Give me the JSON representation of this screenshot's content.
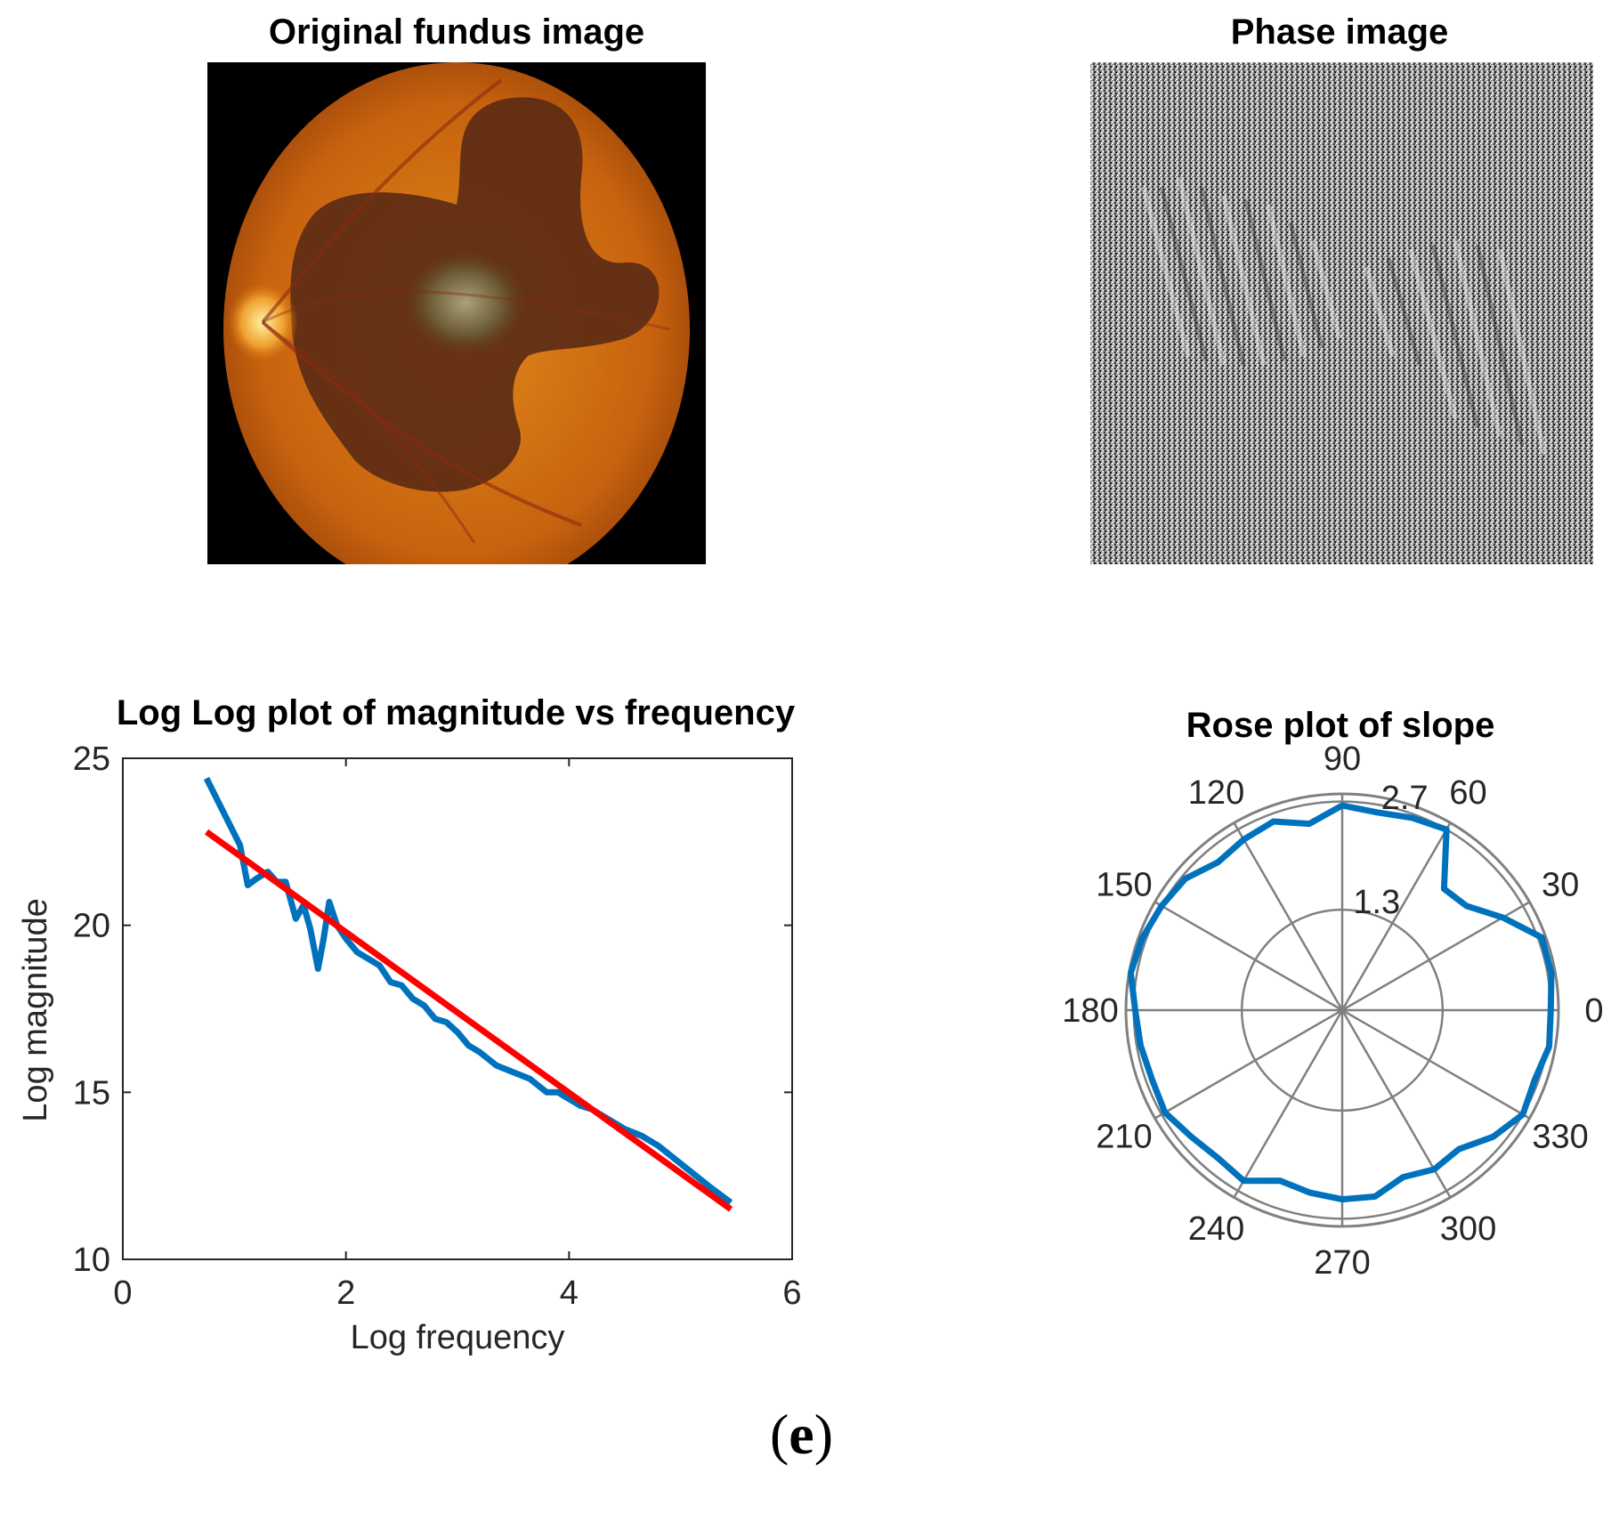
{
  "figure": {
    "caption_letter": "e",
    "caption_open": "(",
    "caption_close": ")"
  },
  "fundus": {
    "title": "Original fundus image"
  },
  "phase": {
    "title": "Phase image"
  },
  "colors": {
    "series": "#0072BD",
    "fit": "#FF0000",
    "axis": "#262626",
    "grid": "#808080"
  },
  "chart_data": [
    {
      "type": "line",
      "title": "Log Log plot of magnitude vs frequency",
      "xlabel": "Log frequency",
      "ylabel": "Log magnitude",
      "xlim": [
        0,
        6
      ],
      "ylim": [
        10,
        25
      ],
      "xticks": [
        0,
        2,
        4,
        6
      ],
      "yticks": [
        10,
        15,
        20,
        25
      ],
      "series": [
        {
          "name": "magnitude",
          "x": [
            0.75,
            0.9,
            1.05,
            1.12,
            1.2,
            1.3,
            1.38,
            1.46,
            1.55,
            1.62,
            1.68,
            1.75,
            1.8,
            1.85,
            1.92,
            2.0,
            2.1,
            2.2,
            2.3,
            2.4,
            2.5,
            2.6,
            2.7,
            2.8,
            2.9,
            3.0,
            3.1,
            3.2,
            3.35,
            3.5,
            3.65,
            3.8,
            3.9,
            4.0,
            4.1,
            4.2,
            4.35,
            4.5,
            4.65,
            4.8,
            4.95,
            5.1,
            5.25,
            5.45
          ],
          "y": [
            24.4,
            23.4,
            22.4,
            21.2,
            21.4,
            21.6,
            21.3,
            21.3,
            20.2,
            20.6,
            19.9,
            18.7,
            19.6,
            20.7,
            20.0,
            19.6,
            19.2,
            19.0,
            18.8,
            18.3,
            18.2,
            17.8,
            17.6,
            17.2,
            17.1,
            16.8,
            16.4,
            16.2,
            15.8,
            15.6,
            15.4,
            15.0,
            15.0,
            14.8,
            14.6,
            14.5,
            14.2,
            13.9,
            13.7,
            13.4,
            13.0,
            12.6,
            12.2,
            11.7
          ]
        },
        {
          "name": "linear fit",
          "x": [
            0.75,
            5.45
          ],
          "y": [
            22.8,
            11.5
          ]
        }
      ]
    },
    {
      "type": "polar",
      "title": "Rose plot of slope",
      "r_max": 2.8,
      "r_ticks": [
        1.3,
        2.7
      ],
      "r_tick_labels": [
        "1.3",
        "2.7"
      ],
      "angle_ticks": [
        0,
        30,
        60,
        90,
        120,
        150,
        180,
        210,
        240,
        270,
        300,
        330
      ],
      "angle_tick_labels": [
        "0",
        "30",
        "60",
        "90",
        "120",
        "150",
        "180",
        "210",
        "240",
        "270",
        "300",
        "330"
      ],
      "series": [
        {
          "name": "slope",
          "theta": [
            0,
            10,
            20,
            30,
            40,
            50,
            60,
            70,
            80,
            90,
            100,
            110,
            120,
            130,
            140,
            150,
            160,
            170,
            180,
            190,
            200,
            210,
            220,
            230,
            240,
            250,
            260,
            270,
            280,
            290,
            300,
            310,
            320,
            330,
            340,
            350,
            360
          ],
          "r": [
            2.7,
            2.75,
            2.75,
            2.4,
            2.1,
            2.05,
            2.7,
            2.65,
            2.6,
            2.65,
            2.45,
            2.6,
            2.55,
            2.5,
            2.65,
            2.7,
            2.75,
            2.78,
            2.68,
            2.65,
            2.62,
            2.65,
            2.55,
            2.5,
            2.55,
            2.35,
            2.4,
            2.45,
            2.45,
            2.3,
            2.38,
            2.35,
            2.55,
            2.7,
            2.65,
            2.72,
            2.7
          ]
        }
      ]
    }
  ]
}
